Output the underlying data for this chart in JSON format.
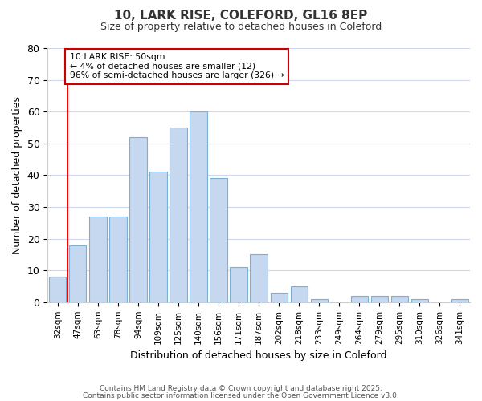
{
  "title1": "10, LARK RISE, COLEFORD, GL16 8EP",
  "title2": "Size of property relative to detached houses in Coleford",
  "xlabel": "Distribution of detached houses by size in Coleford",
  "ylabel": "Number of detached properties",
  "categories": [
    "32sqm",
    "47sqm",
    "63sqm",
    "78sqm",
    "94sqm",
    "109sqm",
    "125sqm",
    "140sqm",
    "156sqm",
    "171sqm",
    "187sqm",
    "202sqm",
    "218sqm",
    "233sqm",
    "249sqm",
    "264sqm",
    "279sqm",
    "295sqm",
    "310sqm",
    "326sqm",
    "341sqm"
  ],
  "values": [
    8,
    18,
    27,
    27,
    52,
    41,
    55,
    60,
    39,
    11,
    15,
    3,
    5,
    1,
    0,
    2,
    2,
    2,
    1,
    0,
    1
  ],
  "bar_color": "#c5d8f0",
  "bar_edge_color": "#7bafd4",
  "red_line_x": 0.5,
  "annotation_text": "10 LARK RISE: 50sqm\n← 4% of detached houses are smaller (12)\n96% of semi-detached houses are larger (326) →",
  "annotation_box_color": "#ffffff",
  "annotation_border_color": "#cc0000",
  "ylim": [
    0,
    80
  ],
  "yticks": [
    0,
    10,
    20,
    30,
    40,
    50,
    60,
    70,
    80
  ],
  "bg_color": "#ffffff",
  "grid_color": "#d0d8ee",
  "footer1": "Contains HM Land Registry data © Crown copyright and database right 2025.",
  "footer2": "Contains public sector information licensed under the Open Government Licence v3.0."
}
